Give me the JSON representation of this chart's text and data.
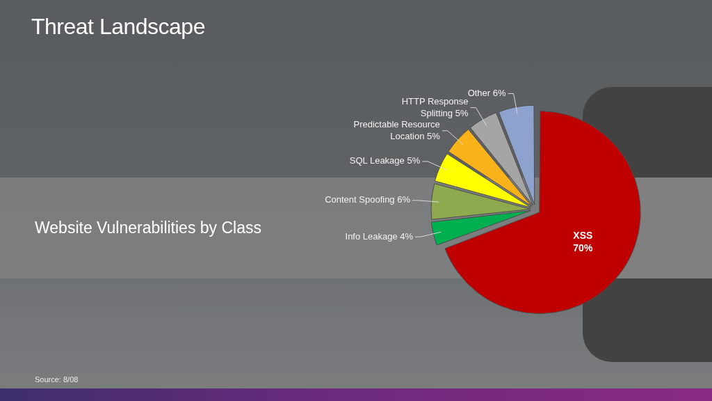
{
  "chart_data": {
    "type": "pie",
    "title": "Threat Landscape",
    "subtitle": "Website Vulnerabilities by Class",
    "categories": [
      "XSS",
      "Info Leakage",
      "Content Spoofing",
      "SQL Leakage",
      "Predictable Resource Location",
      "HTTP Response Splitting",
      "Other"
    ],
    "values": [
      70,
      4,
      6,
      5,
      5,
      5,
      6
    ],
    "value_labels": [
      "70%",
      "4%",
      "6%",
      "5%",
      "5%",
      "5%",
      "6%"
    ],
    "colors": [
      "#c00000",
      "#00b050",
      "#8fa94f",
      "#ffff00",
      "#f9b21a",
      "#a5a5a5",
      "#8da2cc"
    ],
    "annotations": [
      "Source: 8/08"
    ]
  }
}
